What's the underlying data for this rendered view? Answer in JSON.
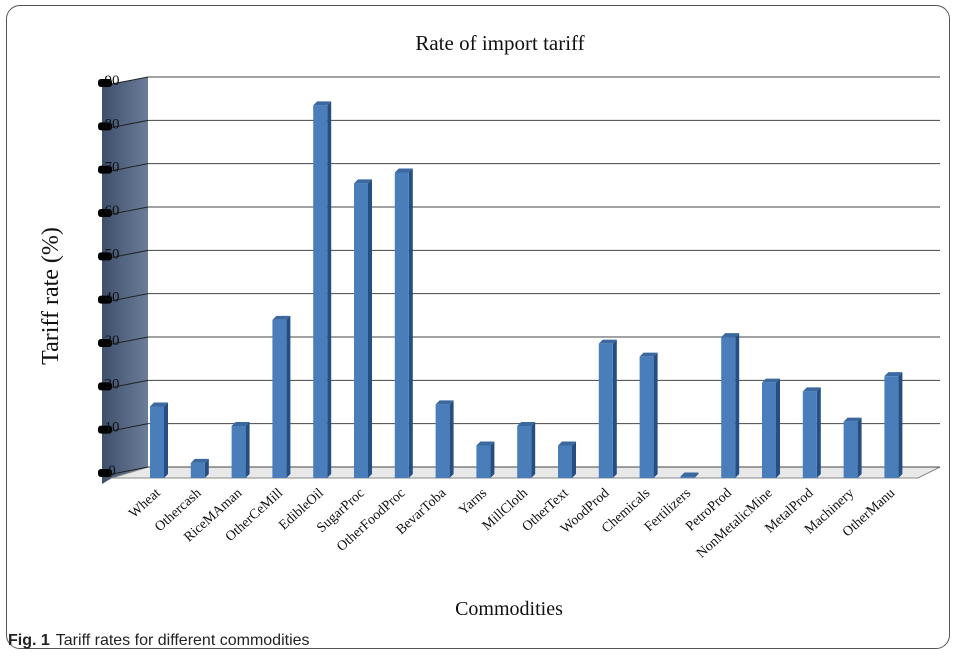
{
  "caption": {
    "label": "Fig. 1",
    "text": "Tariff rates for different commodities"
  },
  "chart_data": {
    "type": "bar",
    "title": "Rate of import tariff",
    "xlabel": "Commodities",
    "ylabel": "Tariff rate (%)",
    "ylim": [
      0,
      90
    ],
    "yticks": [
      0,
      10,
      20,
      30,
      40,
      50,
      60,
      70,
      80,
      90
    ],
    "ytick_labels": [
      "0",
      "10",
      "20",
      "30",
      "40",
      "50",
      "60",
      "70",
      "80",
      "90"
    ],
    "grid": true,
    "legend": "none",
    "bar_color": "#4a7ebb",
    "categories": [
      "Wheat",
      "Othercash",
      "RiceMAman",
      "OtherCeMill",
      "EdibleOil",
      "SugarProc",
      "OtherFoodProc",
      "BevarToba",
      "Yarns",
      "MillCloth",
      "OtherText",
      "WoodProd",
      "Chemicals",
      "Fertilizers",
      "PetroProd",
      "NonMetalicMine",
      "MetalProd",
      "Machinery",
      "OtherManu"
    ],
    "values": [
      16.5,
      3.5,
      12,
      36.5,
      86,
      68,
      70.5,
      17,
      7.5,
      12,
      7.5,
      31,
      28,
      0.2,
      32.5,
      22,
      20,
      13,
      23.5
    ]
  }
}
